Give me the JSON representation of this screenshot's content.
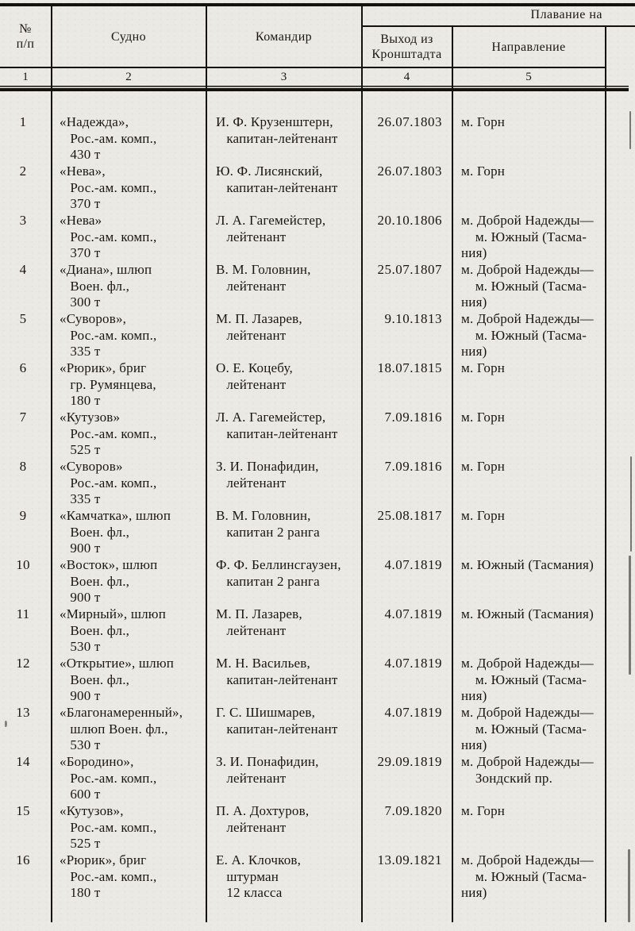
{
  "page": {
    "background_color": "#ebe9e4",
    "ink_color": "#1a1611"
  },
  "header": {
    "group_label": "Плавание на",
    "columns": [
      {
        "label": "№\nп/п",
        "number": "1"
      },
      {
        "label": "Судно",
        "number": "2"
      },
      {
        "label": "Командир",
        "number": "3"
      },
      {
        "label": "Выход из\nКронштадта",
        "number": "4"
      },
      {
        "label": "Направление",
        "number": "5"
      }
    ]
  },
  "table": {
    "rows": [
      {
        "num": "1",
        "ship": "«Надежда»,\n   Рос.-ам. комп.,\n   430 т",
        "commander": "И. Ф. Крузенштерн,\n   капитан-лейтенант",
        "departure": "26.07.1803",
        "direction": "м. Горн"
      },
      {
        "num": "2",
        "ship": "«Нева»,\n   Рос.-ам. комп.,\n   370 т",
        "commander": "Ю. Ф. Лисянский,\n   капитан-лейтенант",
        "departure": "26.07.1803",
        "direction": "м. Горн"
      },
      {
        "num": "3",
        "ship": "«Нева»\n   Рос.-ам. комп.,\n   370 т",
        "commander": "Л. А. Гагемейстер,\n   лейтенант",
        "departure": "20.10.1806",
        "direction": "м. Доброй Надежды—\n    м. Южный (Тасма-\nния)"
      },
      {
        "num": "4",
        "ship": "«Диана», шлюп\n   Воен. фл.,\n   300 т",
        "commander": "В. М. Головнин,\n   лейтенант",
        "departure": "25.07.1807",
        "direction": "м. Доброй Надежды—\n    м. Южный (Тасма-\nния)"
      },
      {
        "num": "5",
        "ship": "«Суворов»,\n   Рос.-ам. комп.,\n   335 т",
        "commander": "М. П. Лазарев,\n   лейтенант",
        "departure": "9.10.1813",
        "direction": "м. Доброй Надежды—\n    м. Южный (Тасма-\nния)"
      },
      {
        "num": "6",
        "ship": "«Рюрик», бриг\n   гр. Румянцева,\n   180 т",
        "commander": "О. Е. Коцебу,\n   лейтенант",
        "departure": "18.07.1815",
        "direction": "м. Горн"
      },
      {
        "num": "7",
        "ship": "«Кутузов»\n   Рос.-ам. комп.,\n   525 т",
        "commander": "Л. А. Гагемейстер,\n   капитан-лейтенант",
        "departure": "7.09.1816",
        "direction": "м. Горн"
      },
      {
        "num": "8",
        "ship": "«Суворов»\n   Рос.-ам. комп.,\n   335 т",
        "commander": "З. И. Понафидин,\n   лейтенант",
        "departure": "7.09.1816",
        "direction": "м. Горн"
      },
      {
        "num": "9",
        "ship": "«Камчатка», шлюп\n   Воен. фл.,\n   900 т",
        "commander": "В. М. Головнин,\n   капитан 2 ранга",
        "departure": "25.08.1817",
        "direction": "м. Горн"
      },
      {
        "num": "10",
        "ship": "«Восток», шлюп\n   Воен. фл.,\n   900 т",
        "commander": "Ф. Ф. Беллинсгаузен,\n   капитан 2 ранга",
        "departure": "4.07.1819",
        "direction": "м. Южный (Тасмания)"
      },
      {
        "num": "11",
        "ship": "«Мирный», шлюп\n   Воен. фл.,\n   530 т",
        "commander": "М. П. Лазарев,\n   лейтенант",
        "departure": "4.07.1819",
        "direction": "м. Южный (Тасмания)"
      },
      {
        "num": "12",
        "ship": "«Открытие», шлюп\n   Воен. фл.,\n   900 т",
        "commander": "М. Н. Васильев,\n   капитан-лейтенант",
        "departure": "4.07.1819",
        "direction": "м. Доброй Надежды—\n    м. Южный (Тасма-\nния)"
      },
      {
        "num": "13",
        "ship": "«Благонамеренный»,\n   шлюп Воен. фл.,\n   530 т",
        "commander": "Г. С. Шишмарев,\n   капитан-лейтенант",
        "departure": "4.07.1819",
        "direction": "м. Доброй Надежды—\n    м. Южный (Тасма-\nния)"
      },
      {
        "num": "14",
        "ship": "«Бородино»,\n   Рос.-ам. комп.,\n   600 т",
        "commander": "З. И. Понафидин,\n   лейтенант",
        "departure": "29.09.1819",
        "direction": "м. Доброй Надежды—\n    Зондский пр."
      },
      {
        "num": "15",
        "ship": "«Кутузов»,\n   Рос.-ам. комп.,\n   525 т",
        "commander": "П. А. Дохтуров,\n   лейтенант",
        "departure": "7.09.1820",
        "direction": "м. Горн"
      },
      {
        "num": "16",
        "ship": "«Рюрик», бриг\n   Рос.-ам. комп.,\n   180 т",
        "commander": "Е. А. Клочков,\n   штурман\n   12 класса",
        "departure": "13.09.1821",
        "direction": "м. Доброй Надежды—\n    м. Южный (Тасма-\nния)"
      }
    ]
  }
}
